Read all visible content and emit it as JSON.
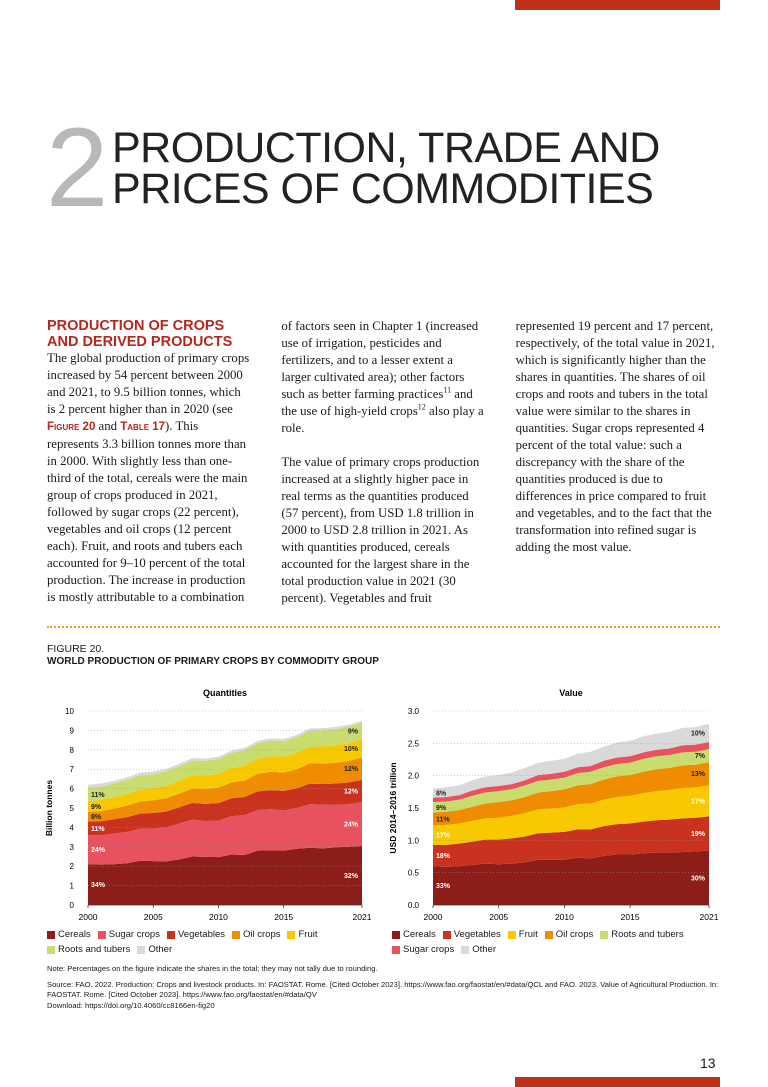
{
  "header": {
    "chapter_number": "2",
    "title_lines": [
      "PRODUCTION, TRADE AND",
      "PRICES OF COMMODITIES"
    ]
  },
  "section": {
    "heading": "PRODUCTION OF CROPS AND DERIVED PRODUCTS",
    "paragraphs": [
      [
        "The global production of primary crops increased by 54 percent between 2000 and 2021, to 9.5 billion tonnes, which is 2 percent higher than in 2020 (see ",
        "Figure 20",
        " and ",
        "Table 17",
        "). This represents 3.3 billion tonnes more than in 2000. With slightly less than one-third of the total, cereals were the main group of crops produced in 2021, followed by sugar crops (22 percent), vegetables and oil crops (12 percent each). Fruit, and roots and tubers each accounted for 9–10 percent of the total production. The increase in production is mostly attributable to a combination of factors seen in Chapter 1 (increased use of irrigation, pesticides and fertilizers, and to a lesser extent a larger cultivated area); other factors such as better farming practices",
        "11",
        " and the use of high-yield crops",
        "12",
        " also play a role."
      ],
      [
        "The value of primary crops production increased at a slightly higher pace in real terms as the quantities produced (57 percent), from USD 1.8 trillion in 2000 to USD 2.8 trillion in 2021. As with quantities produced, cereals accounted for the largest share in the total production value in 2021 (30 percent). Vegetables and fruit represented 19 percent and 17 percent, respectively, of the total value in 2021, which is significantly higher than the shares in quantities. The shares of oil crops and roots and tubers in the total value were similar to the shares in quantities. Sugar crops represented 4 percent of the total value: such a discrepancy with the share of the quantities produced is due to differences in price compared to fruit and vegetables, and to the fact that the transformation into refined sugar is adding the most value."
      ]
    ]
  },
  "figure": {
    "label": "FIGURE 20.",
    "title": "WORLD PRODUCTION OF PRIMARY CROPS BY COMMODITY GROUP",
    "note": "Note: Percentages on the figure indicate the shares in the total; they may not tally due to rounding.",
    "source": "Source: FAO. 2022. Production: Crops and livestock products. In: FAOSTAT. Rome. [Cited October 2023]. https://www.fao.org/faostat/en/#data/QCL and FAO. 2023. Value of Agricultural Production. In: FAOSTAT. Rome. [Cited October 2023]. https://www.fao.org/faostat/en/#data/QV",
    "download": "Download: https://doi.org/10.4060/cc8166en-fig20"
  },
  "chart_data": [
    {
      "type": "stacked_area",
      "title": "Quantities",
      "y_label": "Billion tonnes",
      "grid": true,
      "x": [
        2000,
        2001,
        2002,
        2003,
        2004,
        2005,
        2006,
        2007,
        2008,
        2009,
        2010,
        2011,
        2012,
        2013,
        2014,
        2015,
        2016,
        2017,
        2018,
        2019,
        2020,
        2021
      ],
      "xlim": [
        2000,
        2021
      ],
      "xticks": [
        2000,
        2005,
        2010,
        2015,
        2021
      ],
      "ylim": [
        0,
        10
      ],
      "yticks": [
        0,
        1,
        2,
        3,
        4,
        5,
        6,
        7,
        8,
        9,
        10
      ],
      "series": [
        {
          "name": "Cereals",
          "color": "#8c1d18",
          "labels": [
            "34%",
            "32%"
          ],
          "values": [
            2.1,
            2.08,
            2.1,
            2.15,
            2.28,
            2.26,
            2.25,
            2.35,
            2.5,
            2.48,
            2.47,
            2.6,
            2.58,
            2.8,
            2.82,
            2.8,
            2.9,
            2.95,
            2.92,
            2.98,
            3.0,
            3.05
          ]
        },
        {
          "name": "Sugar crops",
          "color": "#e8515e",
          "labels": [
            "24%",
            "24%"
          ],
          "values": [
            1.5,
            1.52,
            1.58,
            1.62,
            1.65,
            1.68,
            1.75,
            1.85,
            1.9,
            1.85,
            1.88,
            1.98,
            2.05,
            2.1,
            2.12,
            2.08,
            2.1,
            2.25,
            2.25,
            2.18,
            2.2,
            2.25
          ]
        },
        {
          "name": "Vegetables",
          "color": "#c8321e",
          "labels": [
            "11%",
            "12%"
          ],
          "values": [
            0.7,
            0.72,
            0.74,
            0.76,
            0.78,
            0.8,
            0.82,
            0.84,
            0.86,
            0.88,
            0.9,
            0.92,
            0.94,
            0.96,
            0.98,
            1.0,
            1.02,
            1.05,
            1.07,
            1.1,
            1.12,
            1.15
          ]
        },
        {
          "name": "Oil crops",
          "color": "#f08c00",
          "labels": [
            "8%",
            "12%"
          ],
          "values": [
            0.5,
            0.52,
            0.55,
            0.6,
            0.62,
            0.66,
            0.68,
            0.7,
            0.74,
            0.76,
            0.8,
            0.82,
            0.85,
            0.9,
            0.95,
            0.95,
            0.98,
            1.05,
            1.05,
            1.08,
            1.1,
            1.15
          ]
        },
        {
          "name": "Fruit",
          "color": "#f8c800",
          "labels": [
            "9%",
            "10%"
          ],
          "values": [
            0.55,
            0.57,
            0.58,
            0.6,
            0.62,
            0.63,
            0.65,
            0.67,
            0.69,
            0.7,
            0.72,
            0.74,
            0.76,
            0.78,
            0.8,
            0.82,
            0.84,
            0.86,
            0.88,
            0.9,
            0.92,
            0.95
          ]
        },
        {
          "name": "Roots and tubers",
          "color": "#c9dc6e",
          "labels": [
            "11%",
            "9%"
          ],
          "values": [
            0.7,
            0.7,
            0.71,
            0.72,
            0.73,
            0.72,
            0.73,
            0.74,
            0.76,
            0.75,
            0.76,
            0.78,
            0.8,
            0.8,
            0.81,
            0.8,
            0.82,
            0.83,
            0.84,
            0.84,
            0.85,
            0.85
          ]
        },
        {
          "name": "Other",
          "color": "#d9d9d9",
          "values": [
            0.15,
            0.15,
            0.14,
            0.14,
            0.14,
            0.13,
            0.13,
            0.13,
            0.13,
            0.12,
            0.12,
            0.12,
            0.12,
            0.12,
            0.11,
            0.11,
            0.11,
            0.11,
            0.11,
            0.1,
            0.1,
            0.1
          ]
        }
      ]
    },
    {
      "type": "stacked_area",
      "title": "Value",
      "y_label": "USD 2014–2016 trillion",
      "grid": true,
      "x": [
        2000,
        2001,
        2002,
        2003,
        2004,
        2005,
        2006,
        2007,
        2008,
        2009,
        2010,
        2011,
        2012,
        2013,
        2014,
        2015,
        2016,
        2017,
        2018,
        2019,
        2020,
        2021
      ],
      "xlim": [
        2000,
        2021
      ],
      "xticks": [
        2000,
        2005,
        2010,
        2015,
        2021
      ],
      "ylim": [
        0,
        3
      ],
      "yticks": [
        {
          "value": 0,
          "label": "0.0"
        },
        0.5,
        {
          "value": 1,
          "label": "1.0"
        },
        1.5,
        {
          "value": 2,
          "label": "2.0"
        },
        2.5,
        {
          "value": 3,
          "label": "3.0"
        }
      ],
      "series": [
        {
          "name": "Cereals",
          "color": "#8c1d18",
          "labels": [
            "33%",
            "30%"
          ],
          "values": [
            0.6,
            0.59,
            0.6,
            0.62,
            0.64,
            0.63,
            0.64,
            0.66,
            0.7,
            0.7,
            0.7,
            0.73,
            0.72,
            0.76,
            0.78,
            0.78,
            0.8,
            0.81,
            0.81,
            0.82,
            0.83,
            0.84
          ]
        },
        {
          "name": "Vegetables",
          "color": "#c8321e",
          "labels": [
            "18%",
            "19%"
          ],
          "values": [
            0.33,
            0.34,
            0.35,
            0.36,
            0.37,
            0.38,
            0.39,
            0.4,
            0.41,
            0.42,
            0.43,
            0.44,
            0.45,
            0.46,
            0.47,
            0.48,
            0.49,
            0.5,
            0.51,
            0.52,
            0.52,
            0.53
          ]
        },
        {
          "name": "Fruit",
          "color": "#f8c800",
          "labels": [
            "17%",
            "17%"
          ],
          "values": [
            0.3,
            0.31,
            0.31,
            0.32,
            0.33,
            0.34,
            0.35,
            0.36,
            0.37,
            0.37,
            0.38,
            0.39,
            0.4,
            0.41,
            0.42,
            0.43,
            0.44,
            0.45,
            0.46,
            0.47,
            0.47,
            0.48
          ]
        },
        {
          "name": "Oil crops",
          "color": "#f08c00",
          "labels": [
            "11%",
            "13%"
          ],
          "values": [
            0.2,
            0.2,
            0.21,
            0.22,
            0.23,
            0.24,
            0.24,
            0.25,
            0.26,
            0.27,
            0.28,
            0.29,
            0.3,
            0.31,
            0.32,
            0.32,
            0.33,
            0.34,
            0.34,
            0.35,
            0.35,
            0.36
          ]
        },
        {
          "name": "Roots and tubers",
          "color": "#c9dc6e",
          "labels": [
            "9%",
            "7%"
          ],
          "values": [
            0.16,
            0.16,
            0.16,
            0.17,
            0.17,
            0.17,
            0.17,
            0.18,
            0.18,
            0.18,
            0.18,
            0.19,
            0.19,
            0.19,
            0.19,
            0.19,
            0.2,
            0.2,
            0.2,
            0.2,
            0.2,
            0.2
          ]
        },
        {
          "name": "Sugar crops",
          "color": "#e8515e",
          "values": [
            0.07,
            0.07,
            0.07,
            0.08,
            0.08,
            0.08,
            0.08,
            0.08,
            0.09,
            0.09,
            0.09,
            0.09,
            0.09,
            0.1,
            0.1,
            0.1,
            0.1,
            0.1,
            0.1,
            0.11,
            0.11,
            0.11
          ]
        },
        {
          "name": "Other",
          "color": "#d9d9d9",
          "labels": [
            "8%",
            "10%"
          ],
          "values": [
            0.14,
            0.15,
            0.15,
            0.16,
            0.17,
            0.17,
            0.18,
            0.19,
            0.19,
            0.2,
            0.2,
            0.21,
            0.22,
            0.22,
            0.23,
            0.24,
            0.25,
            0.25,
            0.26,
            0.27,
            0.27,
            0.28
          ]
        }
      ]
    }
  ],
  "page_number": "13"
}
